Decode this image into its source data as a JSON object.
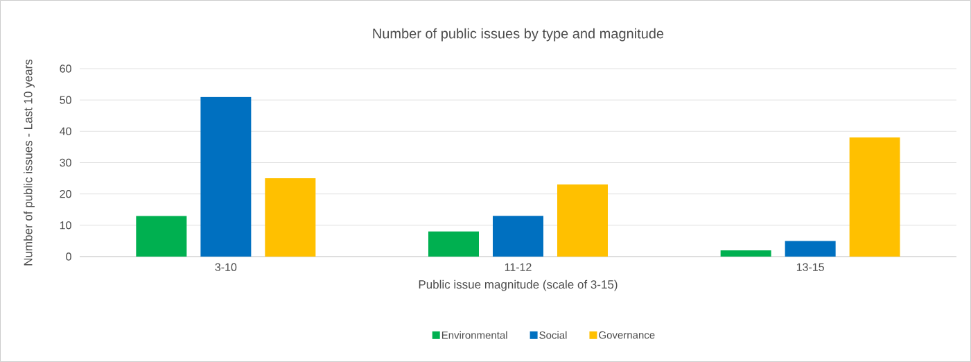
{
  "chart_data": {
    "type": "bar",
    "title": "Number of public issues by type and magnitude",
    "xlabel": "Public issue magnitude (scale of 3-15)",
    "ylabel": "Number of public issues - Last 10 years",
    "categories": [
      "3-10",
      "11-12",
      "13-15"
    ],
    "series": [
      {
        "name": "Environmental",
        "color": "#00b050",
        "values": [
          13,
          8,
          2
        ]
      },
      {
        "name": "Social",
        "color": "#0070c0",
        "values": [
          51,
          13,
          5
        ]
      },
      {
        "name": "Governance",
        "color": "#ffc000",
        "values": [
          25,
          23,
          38
        ]
      }
    ],
    "ylim": [
      0,
      60
    ],
    "yticks": [
      0,
      10,
      20,
      30,
      40,
      50,
      60
    ],
    "grid": "y",
    "legend": "bottom"
  }
}
